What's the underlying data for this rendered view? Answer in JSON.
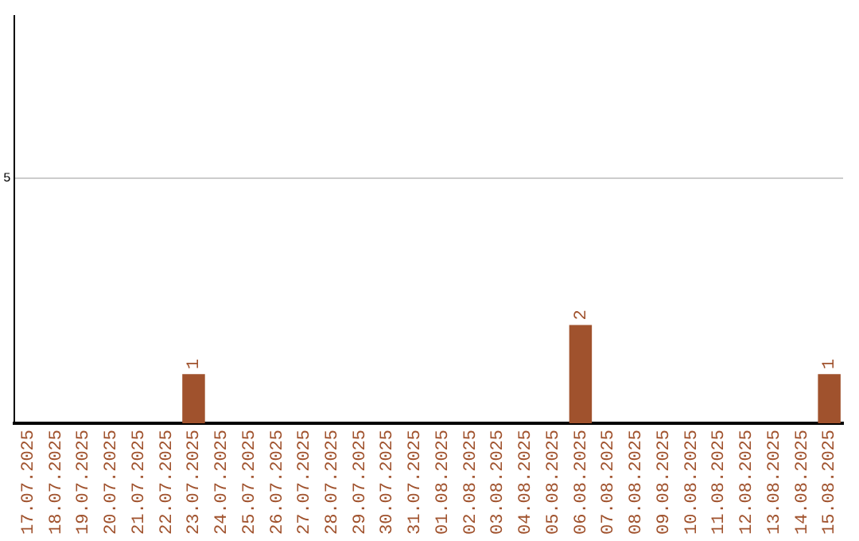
{
  "chart_data": {
    "type": "bar",
    "categories": [
      "17.07.2025",
      "18.07.2025",
      "19.07.2025",
      "20.07.2025",
      "21.07.2025",
      "22.07.2025",
      "23.07.2025",
      "24.07.2025",
      "25.07.2025",
      "26.07.2025",
      "27.07.2025",
      "28.07.2025",
      "29.07.2025",
      "30.07.2025",
      "31.07.2025",
      "01.08.2025",
      "02.08.2025",
      "03.08.2025",
      "04.08.2025",
      "05.08.2025",
      "06.08.2025",
      "07.08.2025",
      "08.08.2025",
      "09.08.2025",
      "10.08.2025",
      "11.08.2025",
      "12.08.2025",
      "13.08.2025",
      "14.08.2025",
      "15.08.2025"
    ],
    "values": [
      0,
      0,
      0,
      0,
      0,
      0,
      1,
      0,
      0,
      0,
      0,
      0,
      0,
      0,
      0,
      0,
      0,
      0,
      0,
      0,
      2,
      0,
      0,
      0,
      0,
      0,
      0,
      0,
      0,
      1
    ],
    "value_labels": [
      null,
      null,
      null,
      null,
      null,
      null,
      "1",
      null,
      null,
      null,
      null,
      null,
      null,
      null,
      null,
      null,
      null,
      null,
      null,
      null,
      "2",
      null,
      null,
      null,
      null,
      null,
      null,
      null,
      null,
      "1"
    ],
    "color": "#a0522d",
    "ylim": [
      0,
      8.3
    ],
    "yticks": [
      5
    ],
    "grid": "y",
    "legend": false
  }
}
